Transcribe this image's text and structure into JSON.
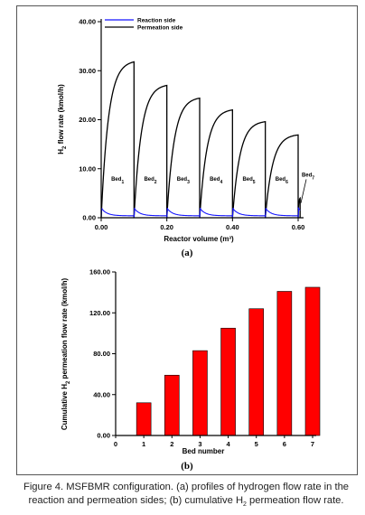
{
  "caption": {
    "line1": "Figure 4. MSFBMR configuration. (a) profiles of hydrogen flow rate in the",
    "line2_prefix": "reaction and permeation sides; (b) cumulative H",
    "line2_sub": "2",
    "line2_suffix": " permeation flow rate."
  },
  "chart_data": [
    {
      "type": "line",
      "panel_label": "(a)",
      "xlabel": "Reactor volume (m³)",
      "ylabel_parts": [
        "H",
        "2",
        " flow rate (kmol/h)"
      ],
      "xlim": [
        0,
        0.6
      ],
      "ylim": [
        0,
        40
      ],
      "x_ticks": [
        0.0,
        0.2,
        0.4,
        0.6
      ],
      "x_tick_labels": [
        "0.00",
        "0.20",
        "0.40",
        "0.60"
      ],
      "y_ticks": [
        0,
        10,
        20,
        30,
        40
      ],
      "y_tick_labels": [
        "0.00",
        "10.00",
        "20.00",
        "30.00",
        "40.00"
      ],
      "legend": [
        {
          "name": "Reaction side",
          "color": "#1515ff"
        },
        {
          "name": "Permeation side",
          "color": "#000000"
        }
      ],
      "legend_position": "top-left",
      "bed_width": 0.1,
      "beds": [
        {
          "label_base": "Bed",
          "label_sub": "1",
          "start": 0.0,
          "end_value": 31.8
        },
        {
          "label_base": "Bed",
          "label_sub": "2",
          "start": 0.1,
          "end_value": 27.0
        },
        {
          "label_base": "Bed",
          "label_sub": "3",
          "start": 0.2,
          "end_value": 24.4
        },
        {
          "label_base": "Bed",
          "label_sub": "4",
          "start": 0.3,
          "end_value": 22.0
        },
        {
          "label_base": "Bed",
          "label_sub": "5",
          "start": 0.4,
          "end_value": 19.6
        },
        {
          "label_base": "Bed",
          "label_sub": "6",
          "start": 0.5,
          "end_value": 16.9
        },
        {
          "label_base": "Bed",
          "label_sub": "7",
          "start": 0.6,
          "end_value": 4.0
        }
      ],
      "reaction_side_peak": 2.0,
      "reaction_side_floor": 0.4
    },
    {
      "type": "bar",
      "panel_label": "(b)",
      "color": "#ff0000",
      "xlabel": "Bed number",
      "ylabel_parts": [
        "Cumulative H",
        "2",
        " permeation flow rate (kmol/h)"
      ],
      "categories": [
        1,
        2,
        3,
        4,
        5,
        6,
        7
      ],
      "values": [
        32,
        59,
        83,
        105,
        124,
        141,
        145
      ],
      "x_ticks": [
        0,
        1,
        2,
        3,
        4,
        5,
        6,
        7
      ],
      "x_tick_labels": [
        "0",
        "1",
        "2",
        "3",
        "4",
        "5",
        "6",
        "7"
      ],
      "ylim": [
        0,
        160
      ],
      "y_ticks": [
        0,
        40,
        80,
        120,
        160
      ],
      "y_tick_labels": [
        "0.00",
        "40.00",
        "80.00",
        "120.00",
        "160.00"
      ]
    }
  ]
}
